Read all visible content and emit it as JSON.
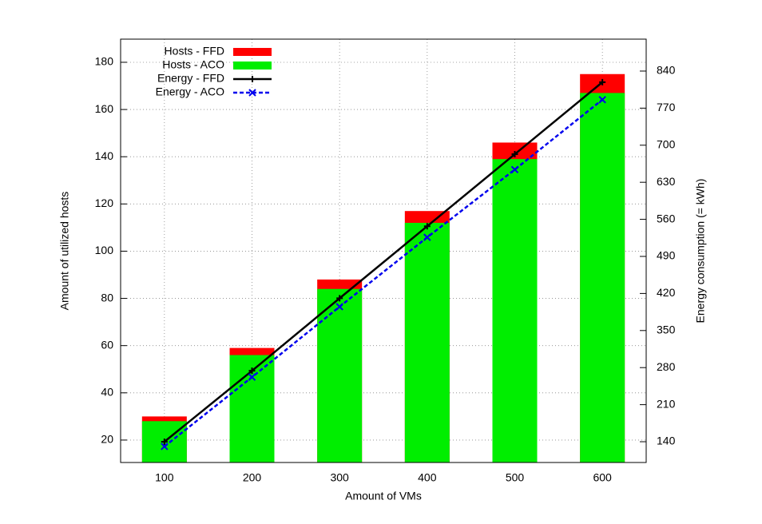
{
  "chart_data": {
    "type": "bar",
    "x_label": "Amount of VMs",
    "y_label": "Amount of utilized hosts",
    "y2_label": "Energy consumption (= kWh)",
    "categories": [
      "100",
      "200",
      "300",
      "400",
      "500",
      "600"
    ],
    "series": [
      {
        "name": "Hosts - FFD",
        "type": "bar",
        "color": "#ff0000",
        "values": [
          30,
          59,
          88,
          117,
          146,
          175
        ]
      },
      {
        "name": "Hosts - ACO",
        "type": "bar",
        "color": "#00ee00",
        "values": [
          28,
          56,
          84,
          112,
          139,
          167
        ]
      },
      {
        "name": "Energy - FFD",
        "type": "line",
        "axis": "y2",
        "color": "#000000",
        "marker": "plus",
        "dashed": false,
        "values": [
          140,
          274,
          411,
          547,
          683,
          819
        ]
      },
      {
        "name": "Energy - ACO",
        "type": "line",
        "axis": "y2",
        "color": "#0000ee",
        "marker": "cross",
        "dashed": true,
        "values": [
          131,
          262,
          395,
          526,
          654,
          786
        ]
      }
    ],
    "ylim": [
      10.5,
      189.8
    ],
    "yticks": [
      20,
      40,
      60,
      80,
      100,
      120,
      140,
      160,
      180
    ],
    "y2lim": [
      100.8,
      900.3
    ],
    "y2ticks": [
      140,
      210,
      280,
      350,
      420,
      490,
      560,
      630,
      700,
      770,
      840
    ],
    "grid": true,
    "legend": "top-left"
  }
}
